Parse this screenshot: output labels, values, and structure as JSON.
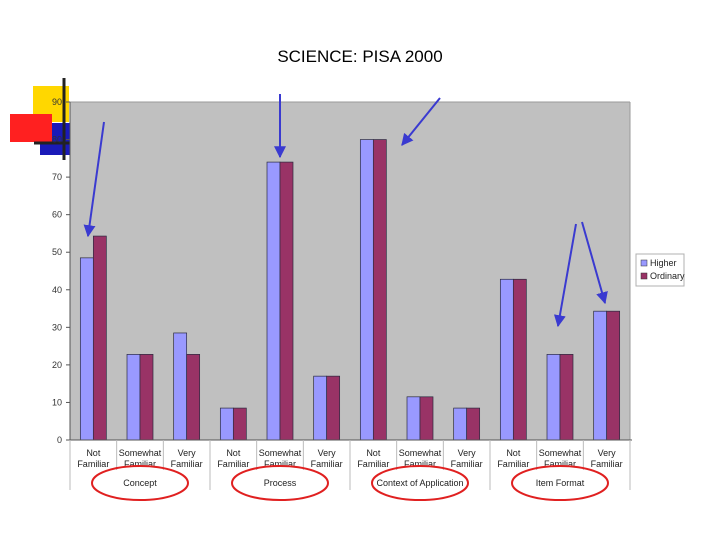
{
  "chart_data": {
    "type": "bar",
    "title": "SCIENCE: PISA 2000",
    "xlabel": "",
    "ylabel": "",
    "ylim": [
      0,
      90
    ],
    "yticks": [
      0,
      10,
      20,
      30,
      40,
      50,
      60,
      70,
      80,
      90
    ],
    "grid": false,
    "legend_position": "right",
    "categories": [
      [
        "Not",
        "Familiar"
      ],
      [
        "Somewhat",
        "Familiar"
      ],
      [
        "Very",
        "Familiar"
      ],
      [
        "Not",
        "Familiar"
      ],
      [
        "Somewhat",
        "Familiar"
      ],
      [
        "Very",
        "Familiar"
      ],
      [
        "Not",
        "Familiar"
      ],
      [
        "Somewhat",
        "Familiar"
      ],
      [
        "Very",
        "Familiar"
      ],
      [
        "Not",
        "Familiar"
      ],
      [
        "Somewhat",
        "Familiar"
      ],
      [
        "Very",
        "Familiar"
      ]
    ],
    "groups": [
      "Concept",
      "Process",
      "Context of Application",
      "Item Format"
    ],
    "series": [
      {
        "name": "Higher",
        "color": "#9999ff",
        "values": [
          48.5,
          22.8,
          28.5,
          8.5,
          74,
          17,
          80,
          11.5,
          8.5,
          42.8,
          22.8,
          34.3
        ]
      },
      {
        "name": "Ordinary",
        "color": "#993366",
        "values": [
          54.3,
          22.8,
          22.8,
          8.5,
          74,
          17,
          80,
          11.5,
          8.5,
          42.8,
          22.8,
          34.3
        ]
      }
    ]
  }
}
